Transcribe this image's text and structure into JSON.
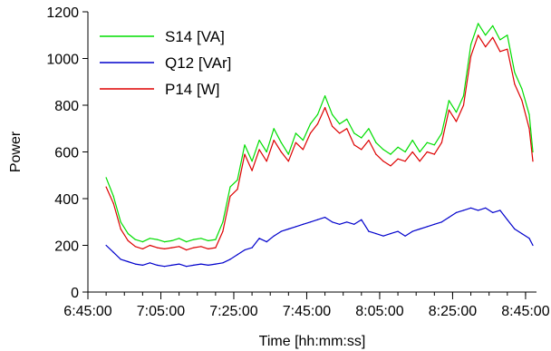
{
  "chart_data": {
    "type": "line",
    "xlabel": "Time [hh:mm:ss]",
    "ylabel": "Power",
    "x_ticks": [
      "6:45:00",
      "7:05:00",
      "7:25:00",
      "7:45:00",
      "8:05:00",
      "8:25:00",
      "8:45:00"
    ],
    "y_ticks": [
      0,
      200,
      400,
      600,
      800,
      1000,
      1200
    ],
    "ylim": [
      0,
      1200
    ],
    "xlim": [
      "6:45:00",
      "8:48:00"
    ],
    "grid": false,
    "legend_position": "top-left",
    "x": [
      "6:50:00",
      "6:52:00",
      "6:54:00",
      "6:56:00",
      "6:58:00",
      "7:00:00",
      "7:02:00",
      "7:04:00",
      "7:06:00",
      "7:08:00",
      "7:10:00",
      "7:12:00",
      "7:14:00",
      "7:16:00",
      "7:18:00",
      "7:20:00",
      "7:22:00",
      "7:24:00",
      "7:26:00",
      "7:28:00",
      "7:30:00",
      "7:32:00",
      "7:34:00",
      "7:36:00",
      "7:38:00",
      "7:40:00",
      "7:42:00",
      "7:44:00",
      "7:46:00",
      "7:48:00",
      "7:50:00",
      "7:52:00",
      "7:54:00",
      "7:56:00",
      "7:58:00",
      "8:00:00",
      "8:02:00",
      "8:04:00",
      "8:06:00",
      "8:08:00",
      "8:10:00",
      "8:12:00",
      "8:14:00",
      "8:16:00",
      "8:18:00",
      "8:20:00",
      "8:22:00",
      "8:24:00",
      "8:26:00",
      "8:28:00",
      "8:30:00",
      "8:32:00",
      "8:34:00",
      "8:36:00",
      "8:38:00",
      "8:40:00",
      "8:42:00",
      "8:44:00",
      "8:46:00",
      "8:47:00"
    ],
    "series": [
      {
        "name": "S14 [VA]",
        "color": "#00dd00",
        "values": [
          490,
          410,
          300,
          250,
          225,
          215,
          230,
          225,
          215,
          220,
          230,
          215,
          225,
          230,
          220,
          225,
          300,
          450,
          480,
          630,
          560,
          650,
          600,
          700,
          640,
          590,
          680,
          650,
          720,
          760,
          840,
          760,
          720,
          740,
          680,
          660,
          700,
          640,
          610,
          590,
          620,
          600,
          650,
          600,
          640,
          630,
          680,
          820,
          770,
          840,
          1060,
          1150,
          1100,
          1140,
          1080,
          1100,
          940,
          870,
          760,
          600
        ]
      },
      {
        "name": "Q12 [VAr]",
        "color": "#0000cc",
        "values": [
          200,
          170,
          140,
          130,
          120,
          115,
          125,
          115,
          110,
          115,
          120,
          110,
          115,
          120,
          115,
          120,
          125,
          140,
          160,
          180,
          190,
          230,
          215,
          240,
          260,
          270,
          280,
          290,
          300,
          310,
          320,
          300,
          290,
          300,
          290,
          310,
          260,
          250,
          240,
          250,
          260,
          240,
          260,
          270,
          280,
          290,
          300,
          320,
          340,
          350,
          360,
          350,
          360,
          340,
          350,
          310,
          270,
          250,
          230,
          200
        ]
      },
      {
        "name": "P14 [W]",
        "color": "#dd0000",
        "values": [
          450,
          380,
          270,
          220,
          195,
          185,
          200,
          190,
          185,
          190,
          195,
          180,
          190,
          195,
          185,
          190,
          260,
          410,
          440,
          590,
          520,
          610,
          560,
          650,
          600,
          560,
          640,
          610,
          680,
          720,
          790,
          710,
          680,
          700,
          630,
          610,
          650,
          590,
          560,
          540,
          570,
          560,
          600,
          560,
          600,
          590,
          640,
          780,
          730,
          800,
          1010,
          1100,
          1050,
          1090,
          1030,
          1040,
          890,
          820,
          700,
          560
        ]
      }
    ]
  }
}
